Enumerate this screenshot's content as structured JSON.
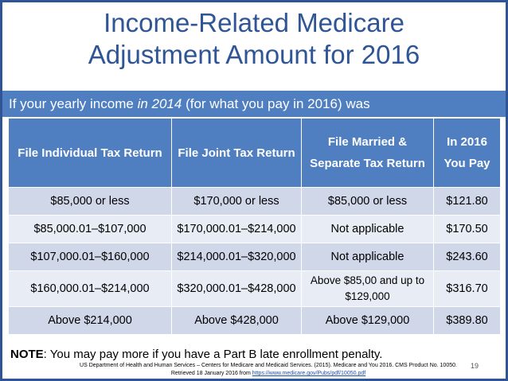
{
  "title": {
    "line1": "Income-Related Medicare",
    "line2": "Adjustment Amount for 2016"
  },
  "subtitle": {
    "prefix": "If your yearly income ",
    "emph": "in 2014",
    "suffix": " (for what you pay in 2016) was"
  },
  "table": {
    "headers": {
      "individual": "File Individual Tax Return",
      "joint": "File Joint Tax Return",
      "married_separate": "File Married & Separate Tax Return",
      "pay": "In 2016 You Pay"
    },
    "rows": [
      {
        "individual": "$85,000 or less",
        "joint": "$170,000 or less",
        "married_separate": "$85,000 or less",
        "pay": "$121.80"
      },
      {
        "individual": "$85,000.01–$107,000",
        "joint": "$170,000.01–$214,000",
        "married_separate": "Not applicable",
        "pay": "$170.50"
      },
      {
        "individual": "$107,000.01–$160,000",
        "joint": "$214,000.01–$320,000",
        "married_separate": "Not applicable",
        "pay": "$243.60"
      },
      {
        "individual": "$160,000.01–$214,000",
        "joint": "$320,000.01–$428,000",
        "married_separate": "Above $85,00 and up to $129,000",
        "pay": "$316.70"
      },
      {
        "individual": "Above $214,000",
        "joint": "Above $428,000",
        "married_separate": "Above $129,000",
        "pay": "$389.80"
      }
    ]
  },
  "note": {
    "label": "NOTE",
    "text": ": You may pay more if you have a Part B late enrollment penalty."
  },
  "source": {
    "line1": "US Department of Health and Human Services – Centers for Medicare and Medicaid Services. (2015). Medicare and You 2016. CMS Product No. 10050.",
    "line2_prefix": "Retrieved 18 January 2016 from ",
    "link": "https://www.medicare.gov/Pubs/pdf/10050.pdf"
  },
  "page_number": "19",
  "colors": {
    "title": "#2f5597",
    "header_bg": "#4f7fc1",
    "row_dark": "#cfd7e9",
    "row_light": "#e8ecf5"
  }
}
